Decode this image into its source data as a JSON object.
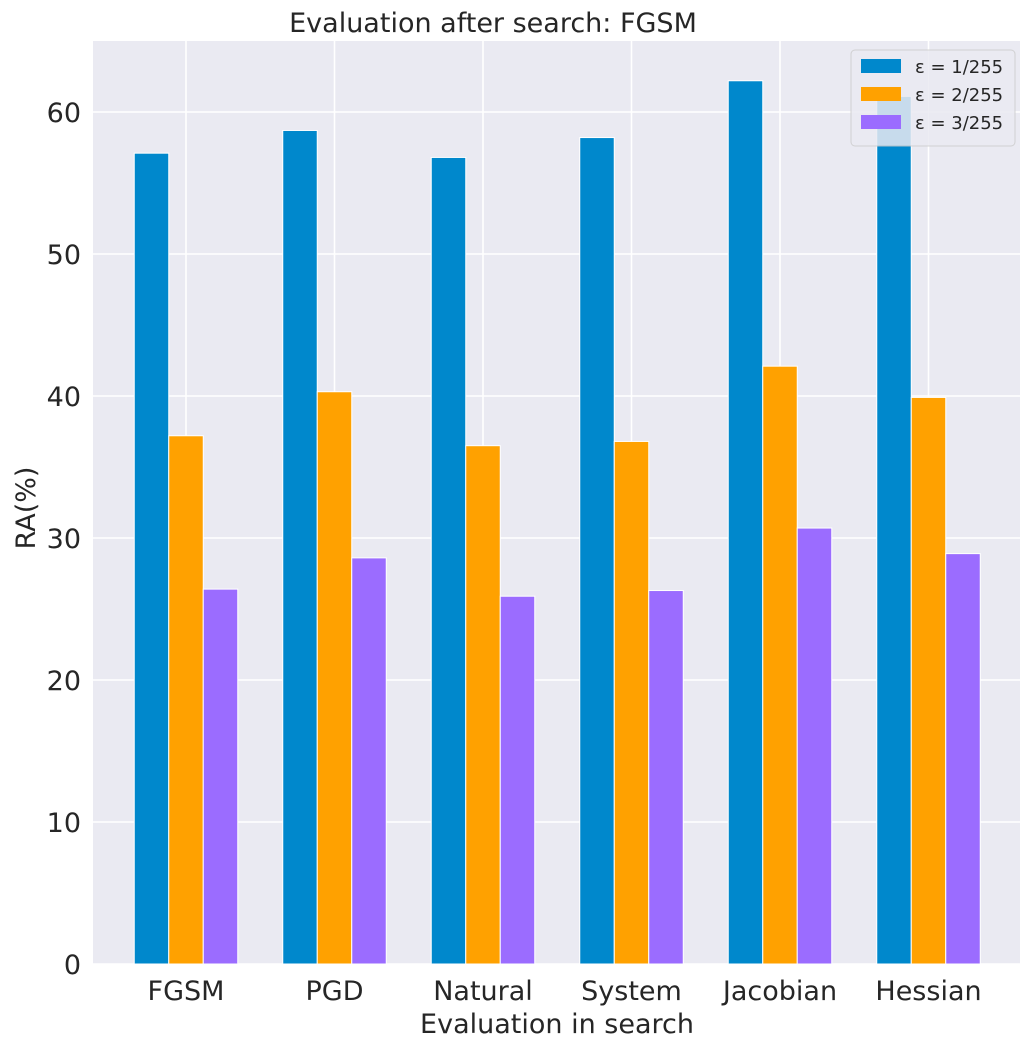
{
  "chart_data": {
    "type": "bar",
    "title": "Evaluation after search: FGSM",
    "xlabel": "Evaluation in search",
    "ylabel": "RA(%)",
    "ylim": [
      0,
      65
    ],
    "yticks": [
      "0",
      "10",
      "20",
      "30",
      "40",
      "50",
      "60"
    ],
    "categories": [
      "FGSM",
      "PGD",
      "Natural",
      "System",
      "Jacobian",
      "Hessian"
    ],
    "series": [
      {
        "name": "ε = 1/255",
        "color": "#0088cc",
        "values": [
          57.1,
          58.7,
          56.8,
          58.2,
          62.2,
          61.1
        ]
      },
      {
        "name": "ε = 2/255",
        "color": "#ffa100",
        "values": [
          37.2,
          40.3,
          36.5,
          36.8,
          42.1,
          39.9
        ]
      },
      {
        "name": "ε = 3/255",
        "color": "#9b6cff",
        "values": [
          26.4,
          28.6,
          25.9,
          26.3,
          30.7,
          28.9
        ]
      }
    ],
    "legend_position": "top-right",
    "grid": true
  },
  "style": {
    "plot_background": "#eaeaf2",
    "grid_color": "#ffffff",
    "text_color": "#262626"
  }
}
